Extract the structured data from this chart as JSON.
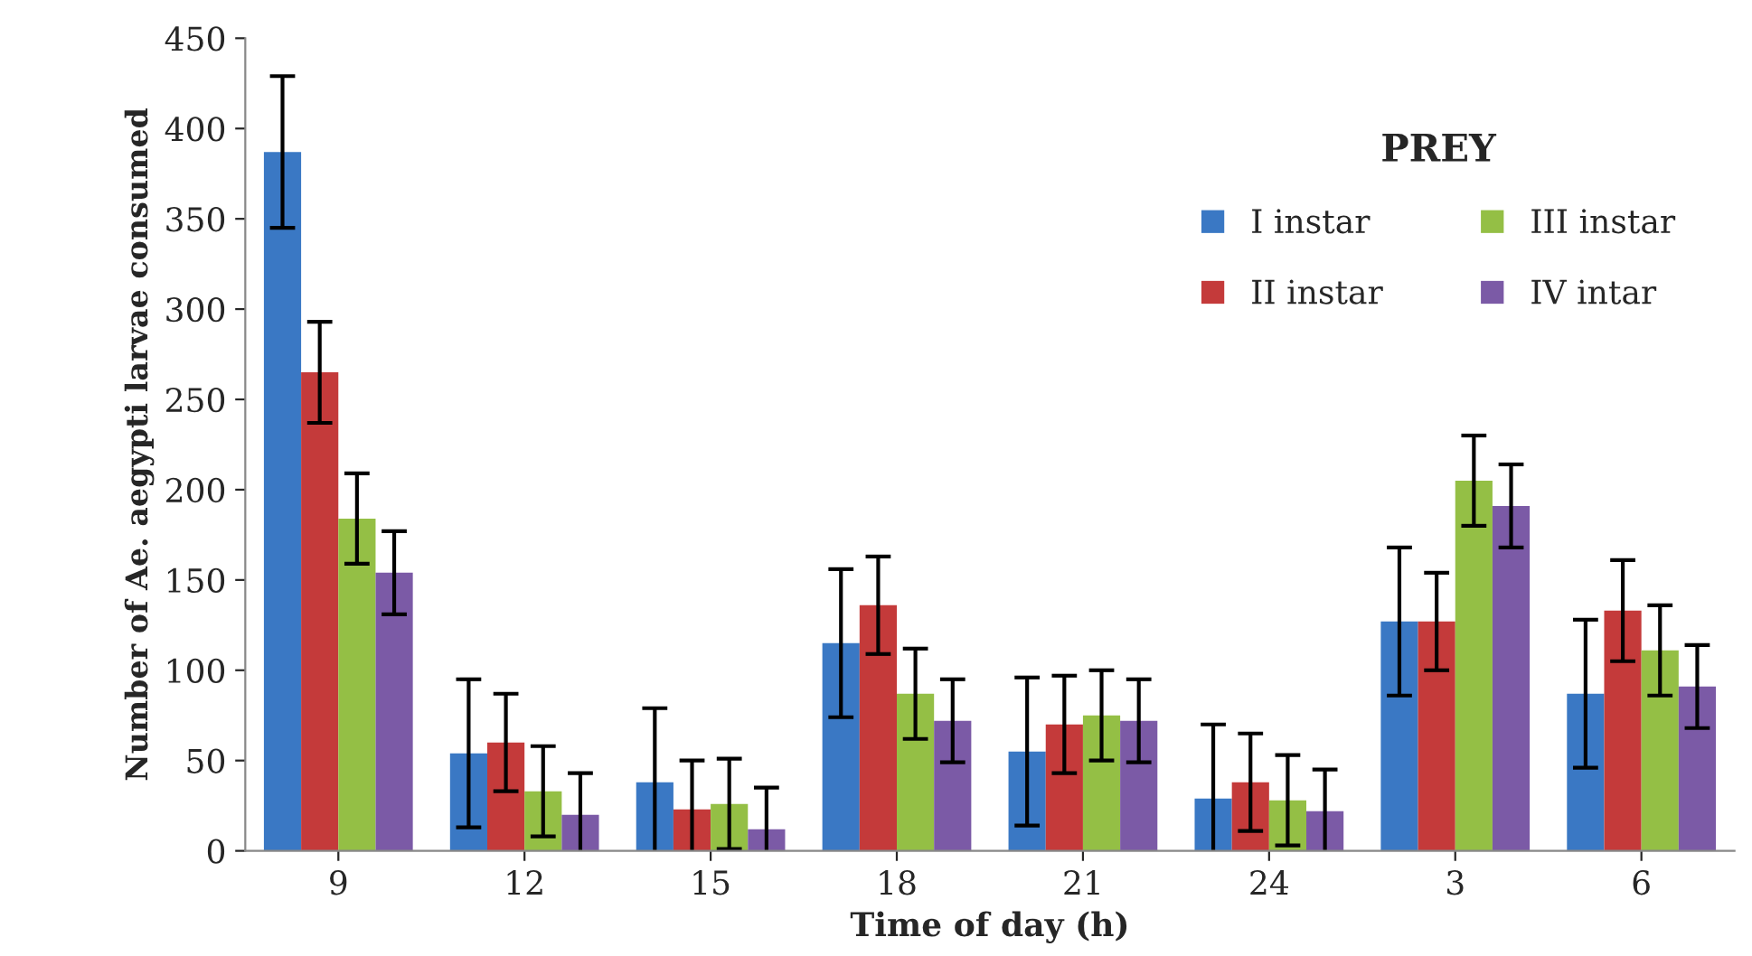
{
  "chart_data": {
    "type": "bar",
    "xlabel": "Time of day (h)",
    "ylabel": "Number of Ae. aegypti larvae consumed",
    "legend_title": "PREY",
    "categories": [
      "9",
      "12",
      "15",
      "18",
      "21",
      "24",
      "3",
      "6"
    ],
    "series": [
      {
        "name": "I instar",
        "color": "#3a78c4",
        "values": [
          387,
          54,
          38,
          115,
          55,
          29,
          127,
          87
        ],
        "errors": [
          42,
          41,
          41,
          41,
          41,
          41,
          41,
          41
        ]
      },
      {
        "name": "II instar",
        "color": "#c43a3a",
        "values": [
          265,
          60,
          23,
          136,
          70,
          38,
          127,
          133
        ],
        "errors": [
          28,
          27,
          27,
          27,
          27,
          27,
          27,
          28
        ]
      },
      {
        "name": "III instar",
        "color": "#94bf45",
        "values": [
          184,
          33,
          26,
          87,
          75,
          28,
          205,
          111
        ],
        "errors": [
          25,
          25,
          25,
          25,
          25,
          25,
          25,
          25
        ]
      },
      {
        "name": "IV intar",
        "color": "#7b5aa6",
        "values": [
          154,
          20,
          12,
          72,
          72,
          22,
          191,
          91
        ],
        "errors": [
          23,
          23,
          23,
          23,
          23,
          23,
          23,
          23
        ]
      }
    ],
    "ylim": [
      0,
      450
    ],
    "yticks": [
      0,
      50,
      100,
      150,
      200,
      250,
      300,
      350,
      400,
      450
    ],
    "legend": "top right"
  }
}
